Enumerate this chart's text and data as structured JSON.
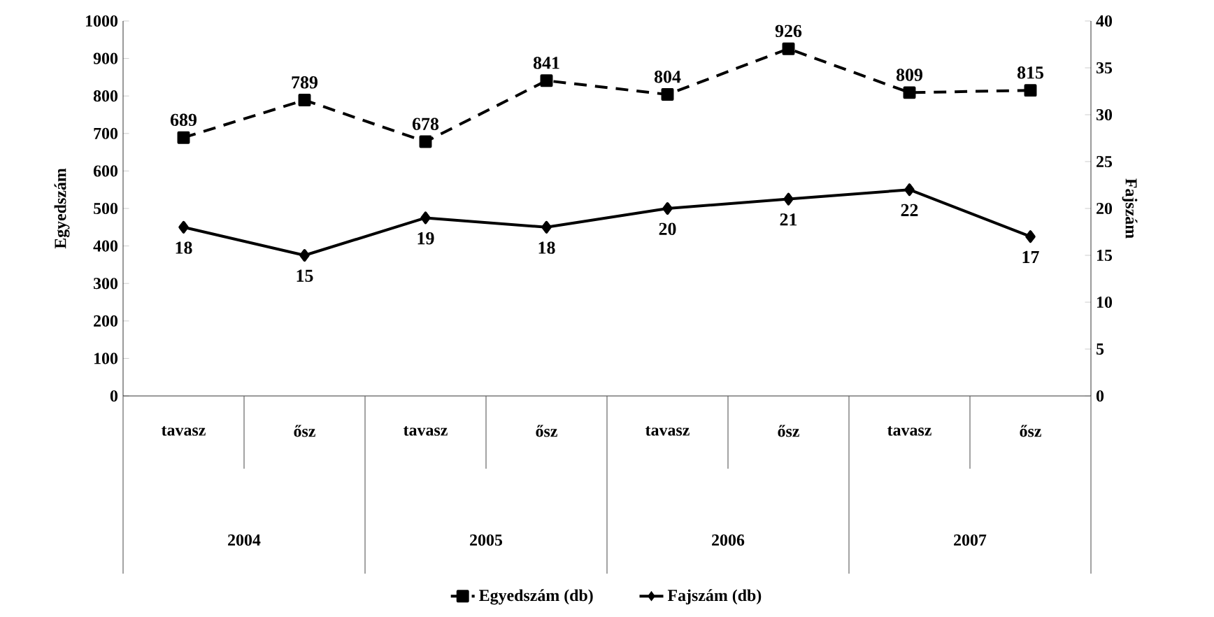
{
  "chart_data": {
    "type": "line",
    "ylabel": "Egyedszám",
    "y2label": "Fajszám",
    "categories": [
      "tavasz",
      "ősz",
      "tavasz",
      "ősz",
      "tavasz",
      "ősz",
      "tavasz",
      "ősz"
    ],
    "annotations": [
      "2004",
      "2005",
      "2006",
      "2007"
    ],
    "series": [
      {
        "name": "Egyedszám (db)",
        "color": "#000000",
        "values": [
          689,
          789,
          678,
          841,
          804,
          926,
          809,
          815
        ],
        "marker": "square",
        "line_style": "dashed"
      },
      {
        "name": "Fajszám (db)",
        "color": "#000000",
        "values": [
          18,
          15,
          19,
          18,
          20,
          21,
          22,
          17
        ],
        "marker": "diamond",
        "line_style": "solid",
        "axis": "y2"
      }
    ],
    "ylim": [
      0,
      1000
    ],
    "yticks": [
      0,
      100,
      200,
      300,
      400,
      500,
      600,
      700,
      800,
      900,
      1000
    ],
    "y2lim": [
      0,
      40
    ],
    "y2ticks": [
      0,
      5,
      10,
      15,
      20,
      25,
      30,
      35,
      40
    ],
    "data_labels": true,
    "legend": "bottom",
    "grid": false
  }
}
